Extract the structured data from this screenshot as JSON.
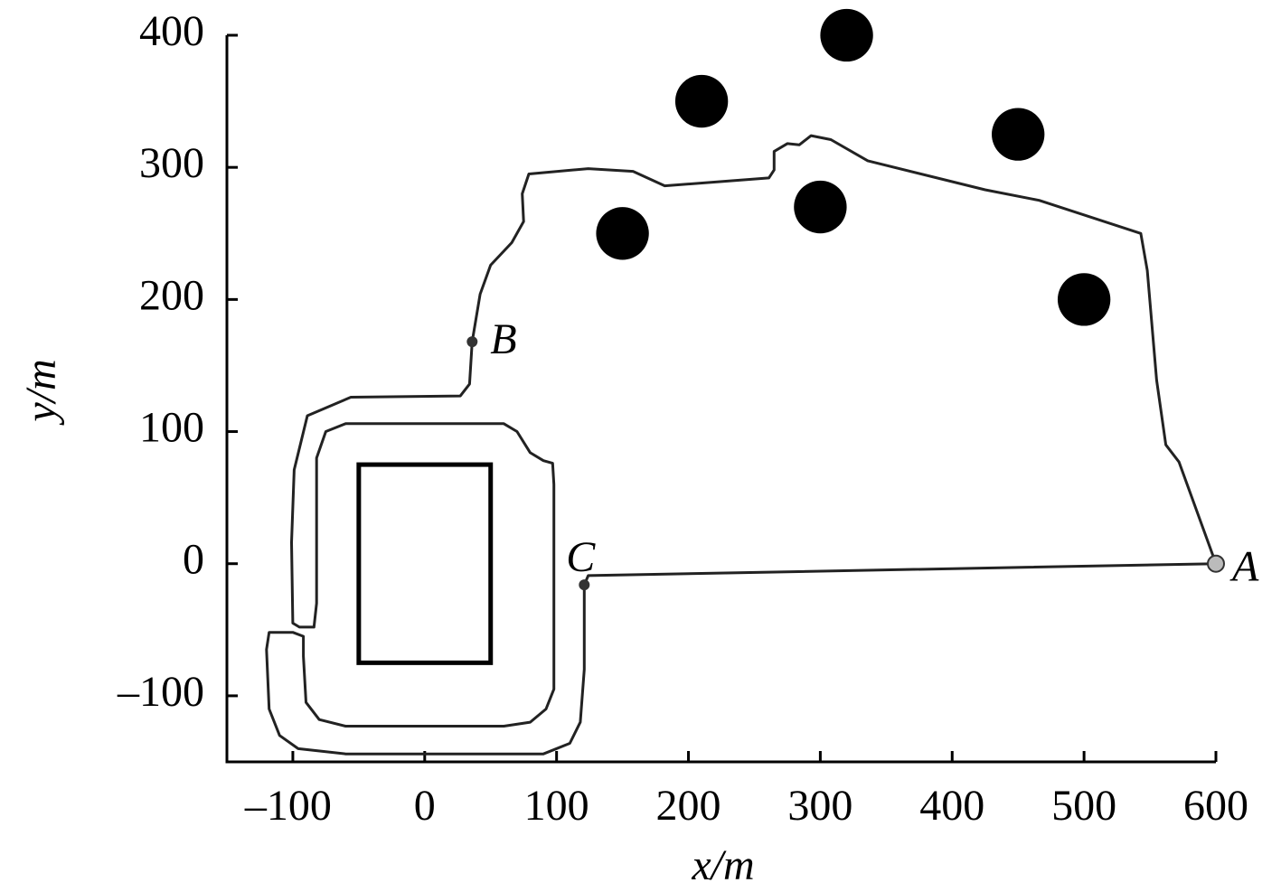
{
  "chart_data": {
    "type": "line",
    "xlabel": "x/m",
    "ylabel": "y/m",
    "xlim": [
      -150,
      600
    ],
    "ylim": [
      -150,
      400
    ],
    "xticks": [
      {
        "value": -100,
        "label": "–100"
      },
      0,
      100,
      200,
      300,
      400,
      500,
      600
    ],
    "yticks": [
      {
        "value": -100,
        "label": "–100"
      },
      0,
      100,
      200,
      300,
      400
    ],
    "series": [
      {
        "name": "path",
        "color": "#222222",
        "x": [
          600,
          572,
          562,
          555,
          548,
          543,
          466,
          425,
          336,
          308,
          293,
          284,
          275,
          265,
          265,
          261,
          182,
          158,
          124,
          79,
          74,
          75,
          66,
          50,
          42,
          36,
          34,
          27,
          -56,
          -89,
          -99,
          -101,
          -100,
          -95,
          -84,
          -82,
          -82,
          -75,
          -60,
          60,
          70,
          80,
          90,
          97,
          98,
          98,
          92,
          80,
          60,
          -60,
          -80,
          -90,
          -92,
          -92,
          -100,
          -118,
          -120,
          -118,
          -110,
          -96,
          -60,
          90,
          110,
          118,
          121,
          121,
          124,
          600
        ],
        "y": [
          0,
          77,
          90,
          139,
          222,
          250,
          275,
          283,
          305,
          321,
          324,
          317,
          318,
          312,
          298,
          292,
          286,
          297,
          299,
          295,
          280,
          259,
          243,
          226,
          204,
          168,
          136,
          127,
          126,
          112,
          71,
          16,
          -45,
          -48,
          -48,
          -30,
          80,
          100,
          106,
          106,
          100,
          84,
          78,
          76,
          60,
          -95,
          -110,
          -120,
          -123,
          -123,
          -118,
          -105,
          -70,
          -55,
          -52,
          -52,
          -65,
          -110,
          -130,
          -140,
          -144,
          -144,
          -136,
          -120,
          -80,
          -16,
          -9,
          0
        ]
      }
    ],
    "obstacles": {
      "color": "#000000",
      "x": [
        150,
        210,
        320,
        300,
        450,
        500
      ],
      "y": [
        250,
        350,
        400,
        270,
        325,
        200
      ],
      "radius": 20
    },
    "obstacle_rect": {
      "x": [
        -50,
        50
      ],
      "y": [
        -75,
        75
      ]
    },
    "points": [
      {
        "label": "A",
        "x": 600,
        "y": 0
      },
      {
        "label": "B",
        "x": 36,
        "y": 168
      },
      {
        "label": "C",
        "x": 121,
        "y": -16
      }
    ]
  }
}
